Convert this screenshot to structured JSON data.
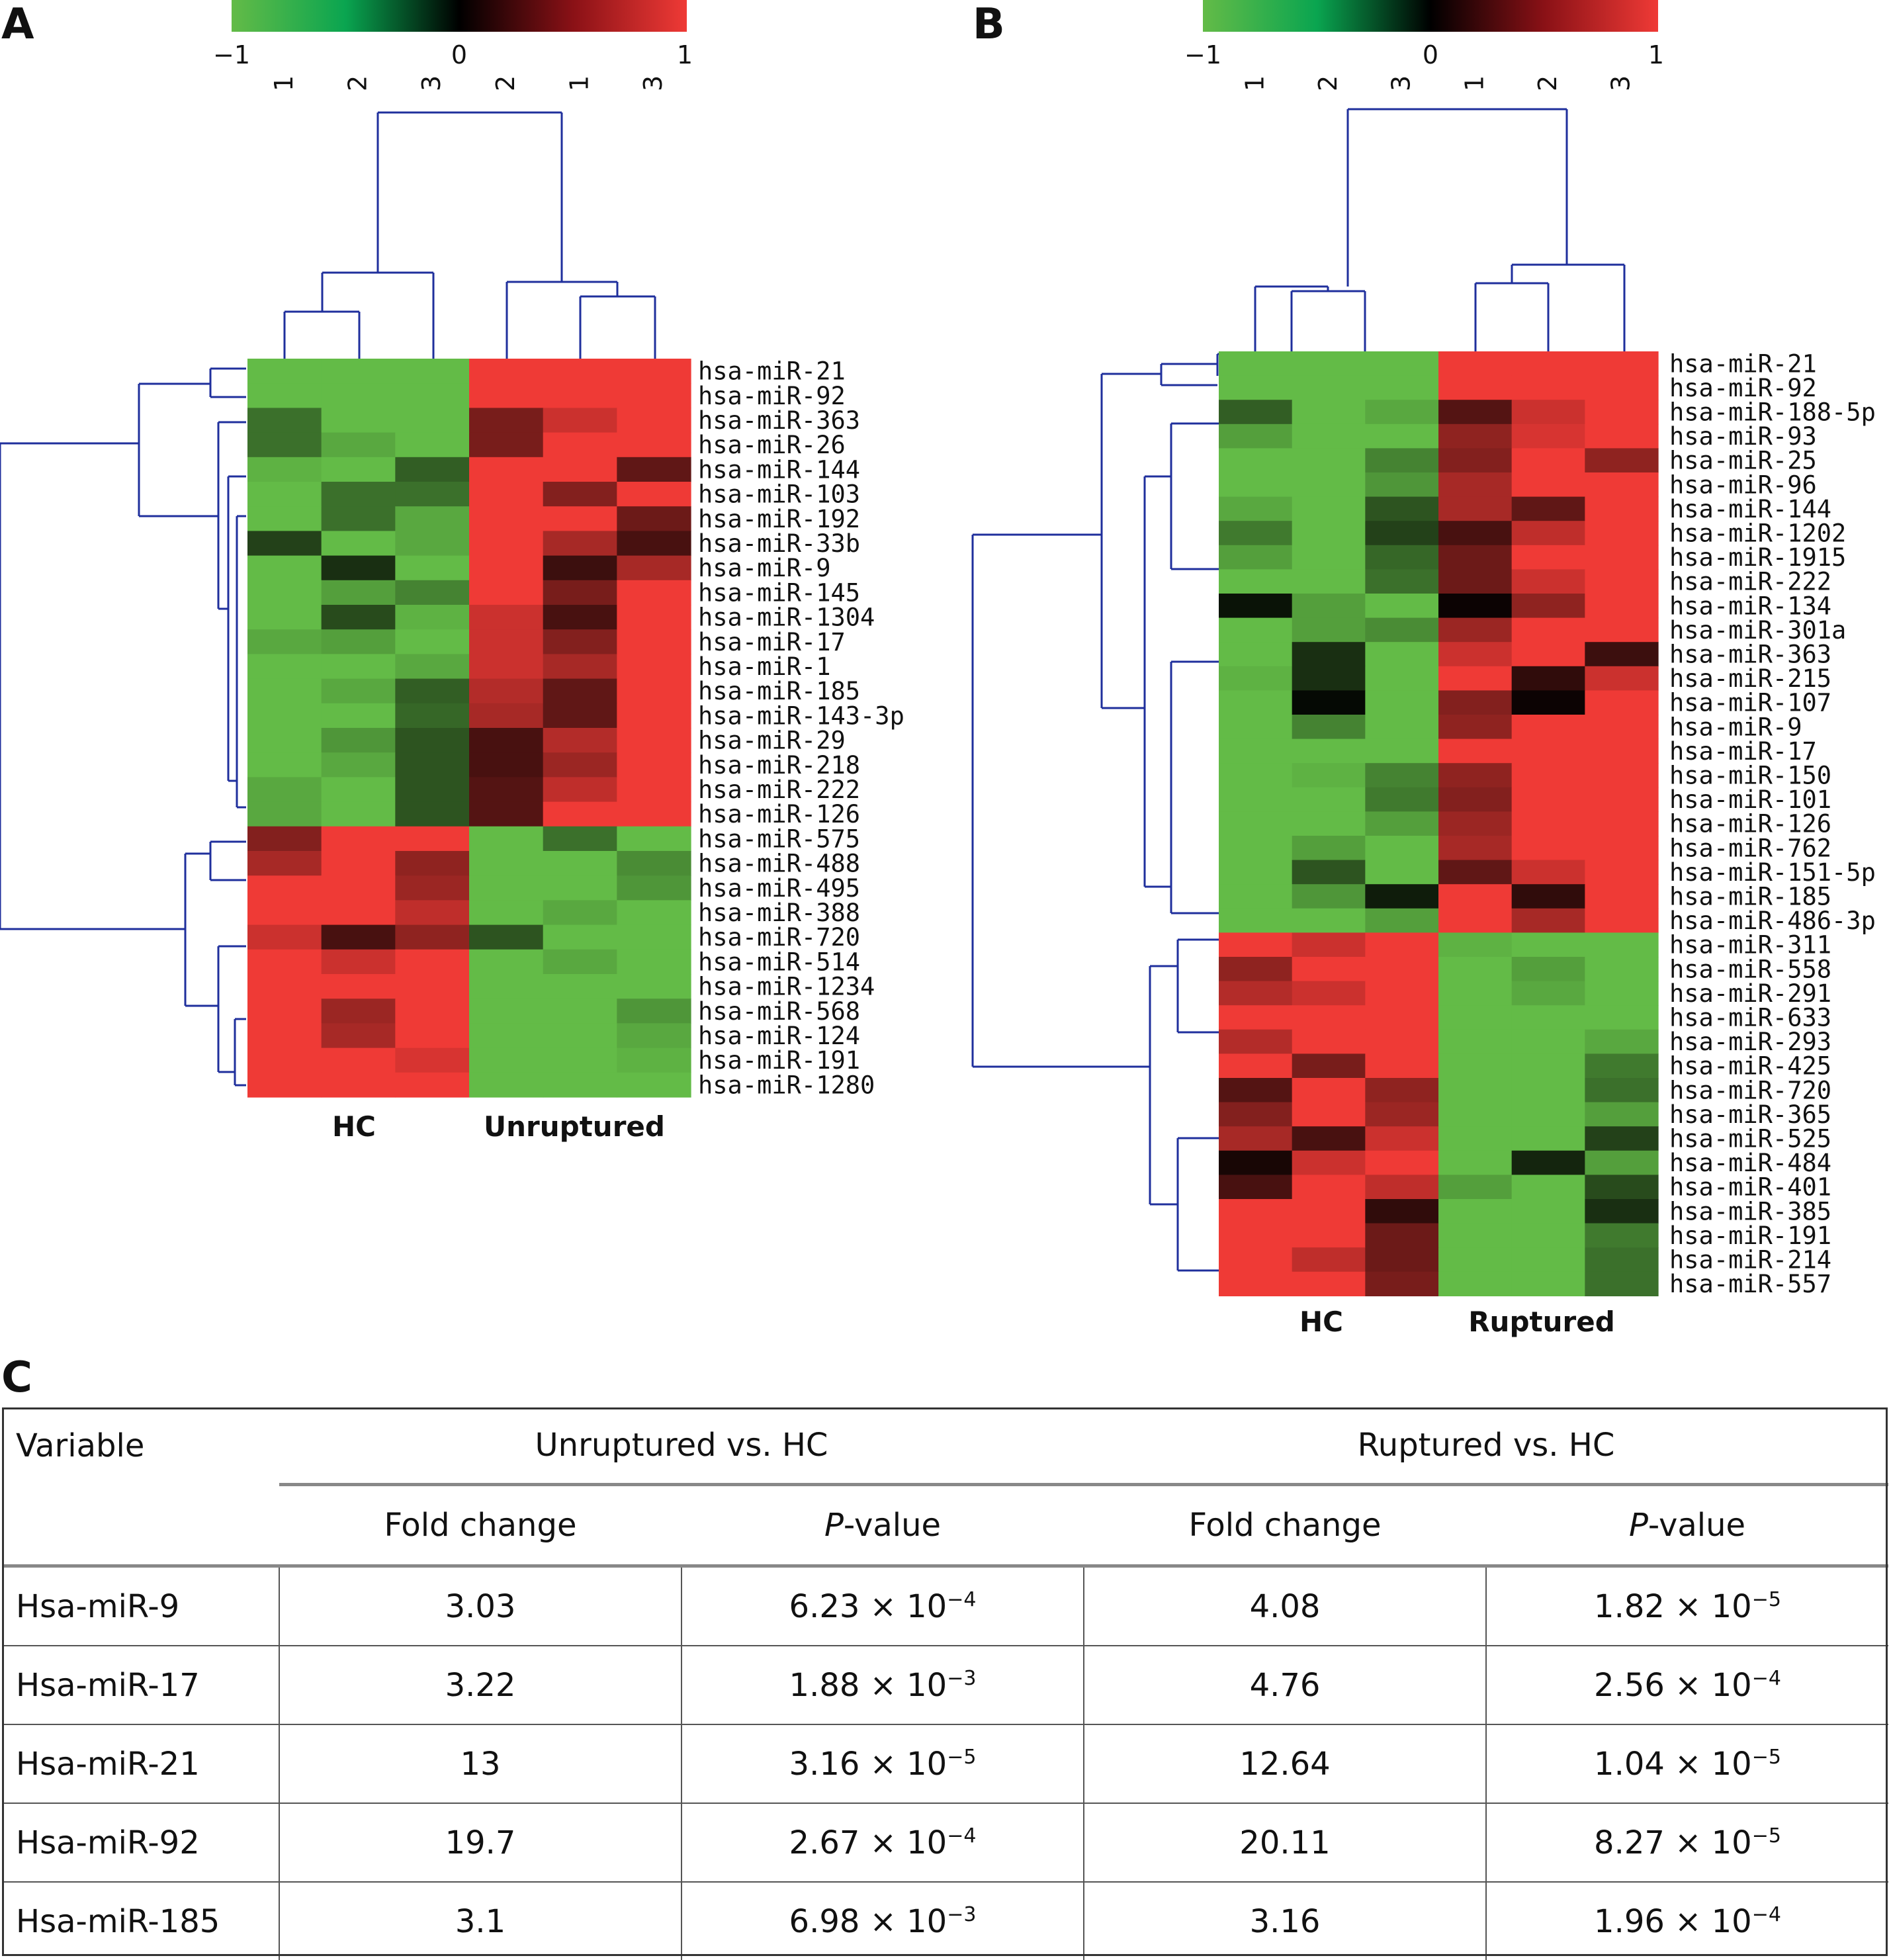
{
  "panels": {
    "A": {
      "letter": "A",
      "scale": {
        "min_label": "−1",
        "mid_label": "0",
        "max_label": "1"
      },
      "col_labels": [
        "1",
        "2",
        "3",
        "2",
        "1",
        "3"
      ],
      "groups": [
        "HC",
        "Unruptured"
      ],
      "rows": [
        "hsa-miR-21",
        "hsa-miR-92",
        "hsa-miR-363",
        "hsa-miR-26",
        "hsa-miR-144",
        "hsa-miR-103",
        "hsa-miR-192",
        "hsa-miR-33b",
        "hsa-miR-9",
        "hsa-miR-145",
        "hsa-miR-1304",
        "hsa-miR-17",
        "hsa-miR-1",
        "hsa-miR-185",
        "hsa-miR-143-3p",
        "hsa-miR-29",
        "hsa-miR-218",
        "hsa-miR-222",
        "hsa-miR-126",
        "hsa-miR-575",
        "hsa-miR-488",
        "hsa-miR-495",
        "hsa-miR-388",
        "hsa-miR-720",
        "hsa-miR-514",
        "hsa-miR-1234",
        "hsa-miR-568",
        "hsa-miR-124",
        "hsa-miR-191",
        "hsa-miR-1280"
      ]
    },
    "B": {
      "letter": "B",
      "scale": {
        "min_label": "−1",
        "mid_label": "0",
        "max_label": "1"
      },
      "col_labels": [
        "1",
        "2",
        "3",
        "1",
        "2",
        "3"
      ],
      "groups": [
        "HC",
        "Ruptured"
      ],
      "rows": [
        "hsa-miR-21",
        "hsa-miR-92",
        "hsa-miR-188-5p",
        "hsa-miR-93",
        "hsa-miR-25",
        "hsa-miR-96",
        "hsa-miR-144",
        "hsa-miR-1202",
        "hsa-miR-1915",
        "hsa-miR-222",
        "hsa-miR-134",
        "hsa-miR-301a",
        "hsa-miR-363",
        "hsa-miR-215",
        "hsa-miR-107",
        "hsa-miR-9",
        "hsa-miR-17",
        "hsa-miR-150",
        "hsa-miR-101",
        "hsa-miR-126",
        "hsa-miR-762",
        "hsa-miR-151-5p",
        "hsa-miR-185",
        "hsa-miR-486-3p",
        "hsa-miR-311",
        "hsa-miR-558",
        "hsa-miR-291",
        "hsa-miR-633",
        "hsa-miR-293",
        "hsa-miR-425",
        "hsa-miR-720",
        "hsa-miR-365",
        "hsa-miR-525",
        "hsa-miR-484",
        "hsa-miR-401",
        "hsa-miR-385",
        "hsa-miR-191",
        "hsa-miR-214",
        "hsa-miR-557"
      ]
    },
    "C": {
      "letter": "C"
    }
  },
  "colors": {
    "low": "#63bb47",
    "mid": "#000000",
    "high": "#ef3a36"
  },
  "heatmap_A": [
    [
      -1,
      -1,
      -1,
      1,
      1,
      1
    ],
    [
      -1,
      -1,
      -1,
      1,
      1,
      1
    ],
    [
      -0.6,
      -1,
      -1,
      0.5,
      0.85,
      1
    ],
    [
      -0.6,
      -0.9,
      -1,
      0.5,
      1,
      1
    ],
    [
      -0.95,
      -1,
      -0.5,
      1,
      1,
      0.4
    ],
    [
      -1,
      -0.6,
      -0.6,
      1,
      0.55,
      1
    ],
    [
      -1,
      -0.6,
      -0.9,
      1,
      1,
      0.45
    ],
    [
      -0.35,
      -1,
      -0.9,
      1,
      0.7,
      0.3
    ],
    [
      -1,
      -0.25,
      -1,
      1,
      0.25,
      0.7
    ],
    [
      -1,
      -0.85,
      -0.7,
      1,
      0.5,
      1
    ],
    [
      -1,
      -0.4,
      -0.95,
      0.85,
      0.3,
      1
    ],
    [
      -0.9,
      -0.85,
      -1,
      0.85,
      0.55,
      1
    ],
    [
      -1,
      -1,
      -0.9,
      0.85,
      0.7,
      1
    ],
    [
      -1,
      -0.9,
      -0.5,
      0.75,
      0.4,
      1
    ],
    [
      -1,
      -1,
      -0.55,
      0.7,
      0.4,
      1
    ],
    [
      -1,
      -0.8,
      -0.45,
      0.3,
      0.75,
      1
    ],
    [
      -1,
      -0.9,
      -0.45,
      0.3,
      0.65,
      1
    ],
    [
      -0.9,
      -1,
      -0.45,
      0.35,
      0.8,
      1
    ],
    [
      -0.9,
      -1,
      -0.45,
      0.35,
      1,
      1
    ],
    [
      0.55,
      1,
      1,
      -1,
      -0.6,
      -1
    ],
    [
      0.7,
      1,
      0.6,
      -1,
      -1,
      -0.75
    ],
    [
      1,
      1,
      0.65,
      -1,
      -1,
      -0.8
    ],
    [
      1,
      1,
      0.8,
      -1,
      -0.9,
      -1
    ],
    [
      0.85,
      0.3,
      0.6,
      -0.45,
      -1,
      -1
    ],
    [
      1,
      0.85,
      1,
      -1,
      -0.9,
      -1
    ],
    [
      1,
      1,
      1,
      -1,
      -1,
      -1
    ],
    [
      1,
      0.65,
      1,
      -1,
      -1,
      -0.8
    ],
    [
      1,
      0.7,
      1,
      -1,
      -1,
      -0.9
    ],
    [
      1,
      1,
      0.9,
      -1,
      -1,
      -0.95
    ],
    [
      1,
      1,
      1,
      -1,
      -1,
      -1
    ]
  ],
  "heatmap_B": [
    [
      -1,
      -1,
      -1,
      1,
      1,
      1
    ],
    [
      -1,
      -1,
      -1,
      1,
      1,
      1
    ],
    [
      -0.5,
      -1,
      -0.9,
      0.35,
      0.85,
      1
    ],
    [
      -0.85,
      -1,
      -1,
      0.6,
      0.9,
      1
    ],
    [
      -1,
      -1,
      -0.7,
      0.55,
      1,
      0.6
    ],
    [
      -1,
      -1,
      -0.8,
      0.7,
      1,
      1
    ],
    [
      -0.9,
      -1,
      -0.45,
      0.7,
      0.4,
      1
    ],
    [
      -0.65,
      -1,
      -0.35,
      0.3,
      0.8,
      1
    ],
    [
      -0.85,
      -1,
      -0.55,
      0.45,
      1,
      1
    ],
    [
      -1,
      -1,
      -0.6,
      0.45,
      0.85,
      1
    ],
    [
      -0.1,
      -0.85,
      -1,
      0.05,
      0.6,
      1
    ],
    [
      -1,
      -0.85,
      -0.75,
      0.65,
      1,
      1
    ],
    [
      -1,
      -0.25,
      -1,
      0.85,
      1,
      0.25
    ],
    [
      -0.95,
      -0.25,
      -1,
      1,
      0.2,
      0.85
    ],
    [
      -1,
      -0.05,
      -1,
      0.55,
      0.05,
      1
    ],
    [
      -1,
      -0.7,
      -1,
      0.6,
      1,
      1
    ],
    [
      -1,
      -1,
      -1,
      1,
      1,
      1
    ],
    [
      -1,
      -0.95,
      -0.7,
      0.6,
      1,
      1
    ],
    [
      -1,
      -1,
      -0.65,
      0.55,
      1,
      1
    ],
    [
      -1,
      -1,
      -0.85,
      0.65,
      1,
      1
    ],
    [
      -1,
      -0.85,
      -1,
      0.7,
      1,
      1
    ],
    [
      -1,
      -0.45,
      -1,
      0.4,
      0.85,
      1
    ],
    [
      -1,
      -0.8,
      -0.15,
      1,
      0.2,
      1
    ],
    [
      -1,
      -1,
      -0.85,
      1,
      0.7,
      1
    ],
    [
      1,
      0.85,
      1,
      -0.95,
      -1,
      -1
    ],
    [
      0.6,
      1,
      1,
      -1,
      -0.85,
      -1
    ],
    [
      0.75,
      0.85,
      1,
      -1,
      -0.9,
      -1
    ],
    [
      1,
      1,
      1,
      -1,
      -1,
      -1
    ],
    [
      0.75,
      1,
      1,
      -1,
      -1,
      -0.9
    ],
    [
      1,
      0.5,
      1,
      -1,
      -1,
      -0.65
    ],
    [
      0.35,
      1,
      0.6,
      -1,
      -1,
      -0.6
    ],
    [
      0.55,
      1,
      0.65,
      -1,
      -1,
      -0.85
    ],
    [
      0.7,
      0.3,
      0.85,
      -1,
      -1,
      -0.35
    ],
    [
      0.1,
      0.85,
      1,
      -1,
      -0.2,
      -0.85
    ],
    [
      0.3,
      1,
      0.8,
      -0.85,
      -1,
      -0.4
    ],
    [
      1,
      1,
      0.2,
      -1,
      -1,
      -0.25
    ],
    [
      1,
      1,
      0.45,
      -1,
      -1,
      -0.65
    ],
    [
      1,
      0.8,
      0.45,
      -1,
      -1,
      -0.6
    ],
    [
      1,
      1,
      0.5,
      -1,
      -1,
      -0.6
    ]
  ],
  "table": {
    "header_variable": "Variable",
    "group1": "Unruptured vs. HC",
    "group2": "Ruptured vs. HC",
    "sub_fold": "Fold change",
    "sub_p_italic": "P",
    "sub_p_rest": "-value",
    "rows": [
      {
        "name": "Hsa-miR-9",
        "fc1": "3.03",
        "p1": "6.23 × 10",
        "e1": "−4",
        "fc2": "4.08",
        "p2": "1.82 × 10",
        "e2": "−5"
      },
      {
        "name": "Hsa-miR-17",
        "fc1": "3.22",
        "p1": "1.88 × 10",
        "e1": "−3",
        "fc2": "4.76",
        "p2": "2.56 × 10",
        "e2": "−4"
      },
      {
        "name": "Hsa-miR-21",
        "fc1": "13",
        "p1": "3.16 × 10",
        "e1": "−5",
        "fc2": "12.64",
        "p2": "1.04 × 10",
        "e2": "−5"
      },
      {
        "name": "Hsa-miR-92",
        "fc1": "19.7",
        "p1": "2.67 × 10",
        "e1": "−4",
        "fc2": "20.11",
        "p2": "8.27 × 10",
        "e2": "−5"
      },
      {
        "name": "Hsa-miR-185",
        "fc1": "3.1",
        "p1": "6.98 × 10",
        "e1": "−3",
        "fc2": "3.16",
        "p2": "1.96 × 10",
        "e2": "−4"
      }
    ]
  }
}
